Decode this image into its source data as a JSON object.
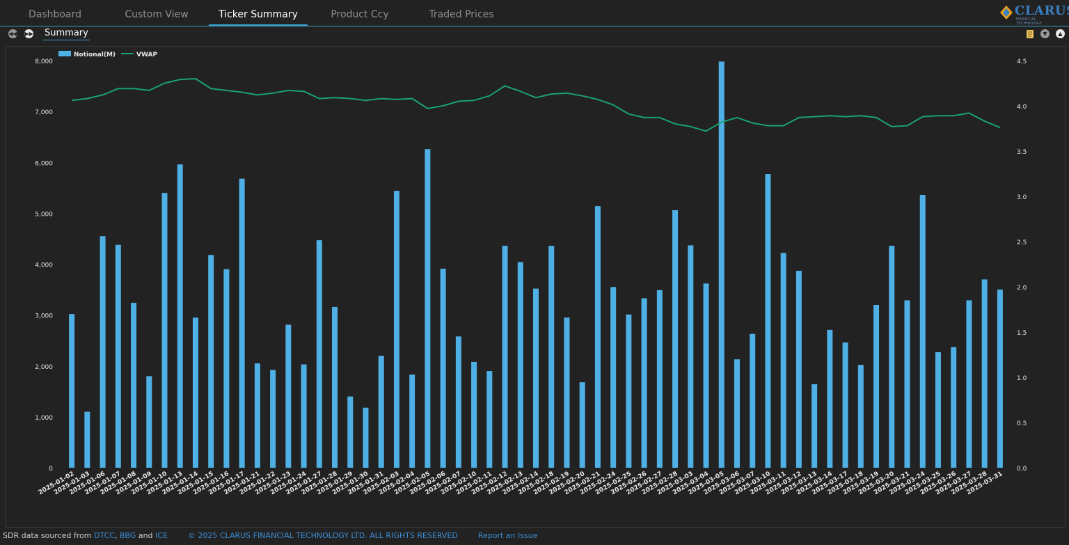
{
  "nav": {
    "tabs": [
      {
        "label": "Dashboard"
      },
      {
        "label": "Custom View"
      },
      {
        "label": "Ticker Summary"
      },
      {
        "label": "Product Ccy"
      },
      {
        "label": "Traded Prices"
      }
    ],
    "active_tab": "Ticker Summary"
  },
  "brand": {
    "logo_text": "CLARUS",
    "logo_sub": "FINANCIAL TECHNOLOGY"
  },
  "subnav": {
    "tab": "Summary"
  },
  "footer": {
    "prefix": "SDR data sourced from ",
    "src1": "DTCC",
    "sep1": ", ",
    "src2": "BBG",
    "sep2": " and ",
    "src3": "ICE",
    "copyright": "© 2025 CLARUS FINANCIAL TECHNOLOGY LTD. ALL RIGHTS RESERVED",
    "report": "Report an Issue"
  },
  "colors": {
    "bar": "#4fb0e6",
    "line": "#1aa271",
    "accent": "#3aa0c8"
  },
  "chart_data": {
    "type": "bar",
    "legend": [
      "Notional(M)",
      "VWAP"
    ],
    "legend_position": "top-left",
    "categories": [
      "2025-01-02",
      "2025-01-03",
      "2025-01-06",
      "2025-01-07",
      "2025-01-08",
      "2025-01-09",
      "2025-01-10",
      "2025-01-13",
      "2025-01-14",
      "2025-01-15",
      "2025-01-16",
      "2025-01-17",
      "2025-01-21",
      "2025-01-22",
      "2025-01-23",
      "2025-01-24",
      "2025-01-27",
      "2025-01-28",
      "2025-01-29",
      "2025-01-30",
      "2025-01-31",
      "2025-02-03",
      "2025-02-04",
      "2025-02-05",
      "2025-02-06",
      "2025-02-07",
      "2025-02-10",
      "2025-02-11",
      "2025-02-12",
      "2025-02-13",
      "2025-02-14",
      "2025-02-18",
      "2025-02-19",
      "2025-02-20",
      "2025-02-21",
      "2025-02-24",
      "2025-02-25",
      "2025-02-26",
      "2025-02-27",
      "2025-02-28",
      "2025-03-03",
      "2025-03-04",
      "2025-03-05",
      "2025-03-06",
      "2025-03-07",
      "2025-03-10",
      "2025-03-11",
      "2025-03-12",
      "2025-03-13",
      "2025-03-14",
      "2025-03-17",
      "2025-03-18",
      "2025-03-19",
      "2025-03-20",
      "2025-03-21",
      "2025-03-24",
      "2025-03-25",
      "2025-03-26",
      "2025-03-27",
      "2025-03-28",
      "2025-03-31"
    ],
    "series": [
      {
        "name": "Notional(M)",
        "type": "bar",
        "axis": "left",
        "values": [
          3020,
          1100,
          4550,
          4380,
          3240,
          1800,
          5400,
          5960,
          2950,
          4180,
          3900,
          5680,
          2050,
          1920,
          2810,
          2030,
          4470,
          3160,
          1400,
          1180,
          2200,
          5440,
          1830,
          6260,
          3910,
          2580,
          2080,
          1900,
          4360,
          4040,
          3520,
          4360,
          2950,
          1680,
          5140,
          3550,
          3010,
          3330,
          3490,
          5060,
          4370,
          3620,
          7980,
          2130,
          2630,
          5770,
          4220,
          3870,
          1640,
          2710,
          2460,
          2020,
          3200,
          4360,
          3290,
          5360,
          2270,
          2370,
          3290,
          3700,
          3500
        ]
      },
      {
        "name": "VWAP",
        "type": "line",
        "axis": "right",
        "values": [
          4.06,
          4.08,
          4.12,
          4.19,
          4.19,
          4.17,
          4.25,
          4.29,
          4.3,
          4.19,
          4.17,
          4.15,
          4.12,
          4.14,
          4.17,
          4.16,
          4.08,
          4.09,
          4.08,
          4.06,
          4.08,
          4.07,
          4.08,
          3.97,
          4.0,
          4.05,
          4.06,
          4.11,
          4.22,
          4.16,
          4.09,
          4.13,
          4.14,
          4.11,
          4.07,
          4.01,
          3.91,
          3.87,
          3.87,
          3.8,
          3.77,
          3.72,
          3.82,
          3.87,
          3.81,
          3.78,
          3.78,
          3.87,
          3.88,
          3.89,
          3.88,
          3.89,
          3.87,
          3.77,
          3.78,
          3.88,
          3.89,
          3.89,
          3.92,
          3.83,
          3.76
        ]
      }
    ],
    "y_left": {
      "min": 0,
      "max": 8000,
      "ticks": [
        "0",
        "1,000",
        "2,000",
        "3,000",
        "4,000",
        "5,000",
        "6,000",
        "7,000",
        "8,000"
      ]
    },
    "y_right": {
      "min": 0,
      "max": 4.5,
      "ticks": [
        "0.0",
        "0.5",
        "1.0",
        "1.5",
        "2.0",
        "2.5",
        "3.0",
        "3.5",
        "4.0",
        "4.5"
      ]
    },
    "grid": false
  }
}
